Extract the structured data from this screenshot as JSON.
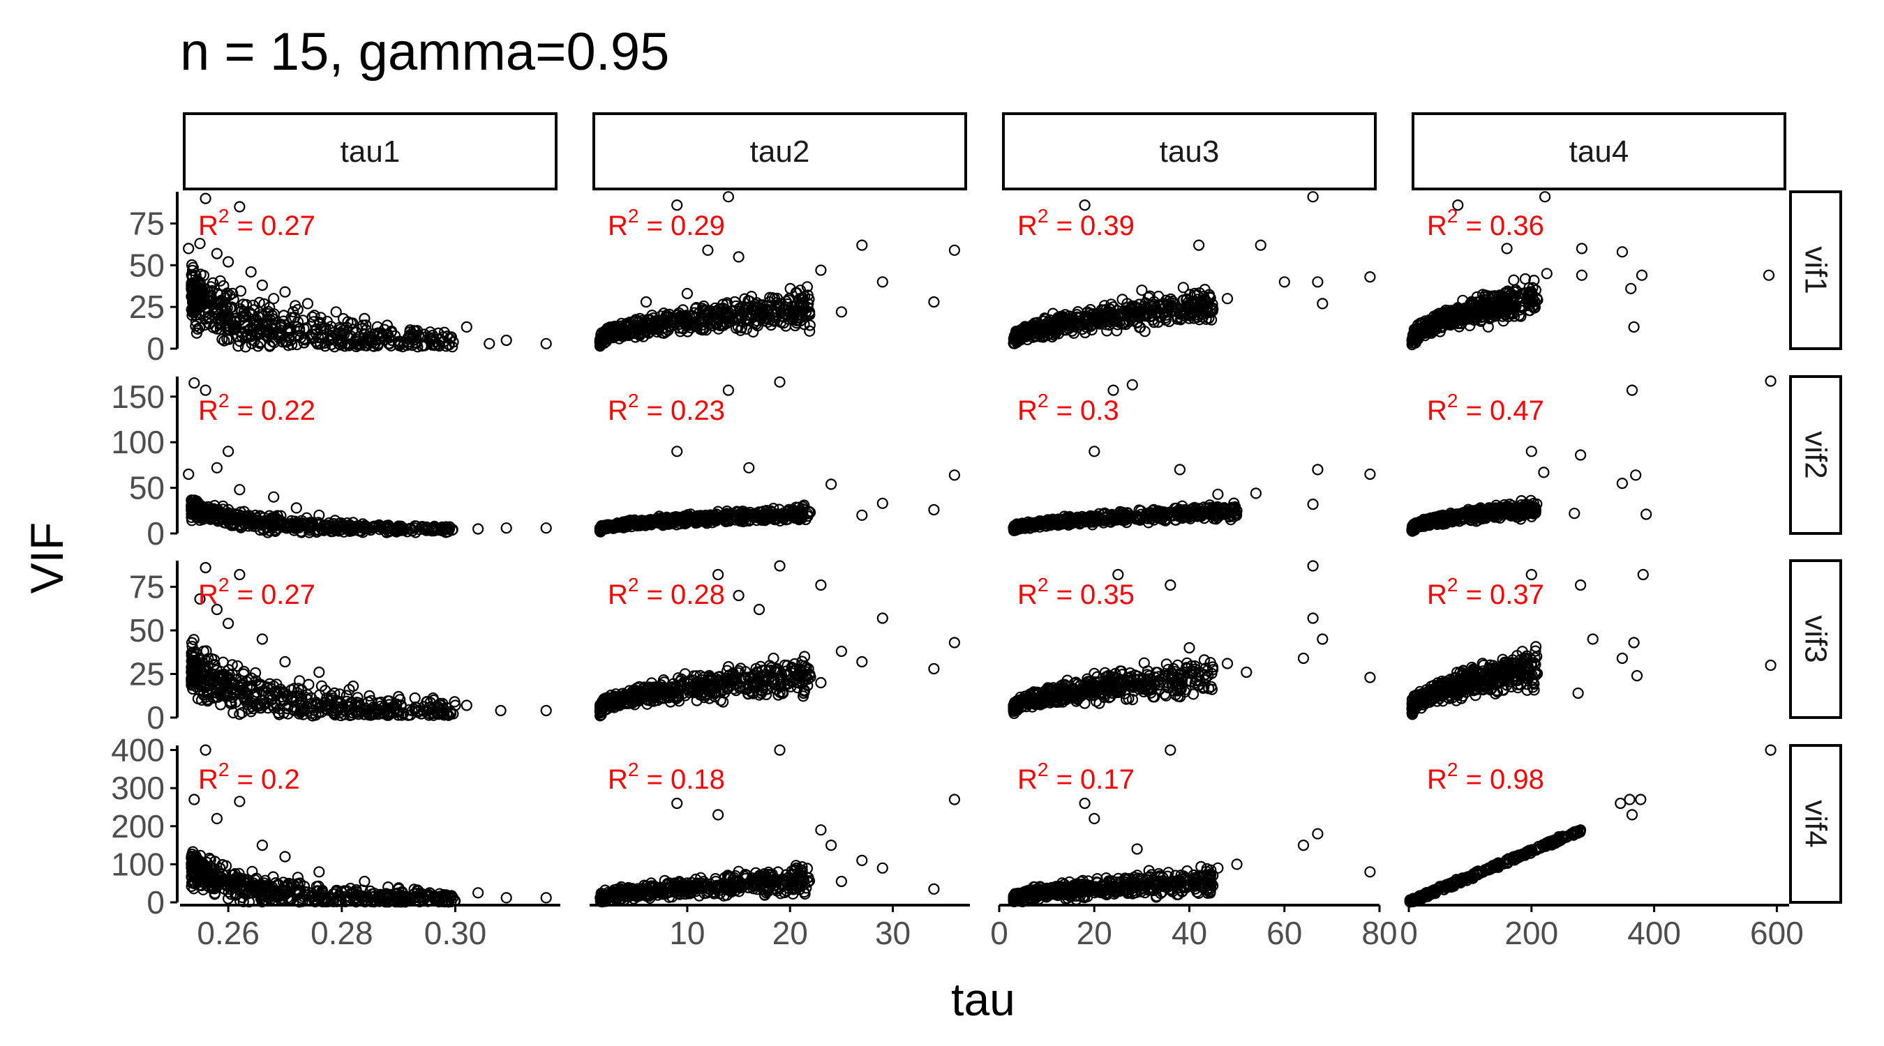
{
  "title": "n = 15, gamma=0.95",
  "colors": {
    "annotation": "#ff0000",
    "points": "#000000",
    "ticks": "#4d4d4d"
  },
  "chart_data": {
    "type": "scatter",
    "title": "n = 15, gamma=0.95",
    "xlabel": "tau",
    "ylabel": "VIF",
    "grid": false,
    "col_facets": [
      {
        "label": "tau1",
        "xlim": [
          0.2515,
          0.3185
        ],
        "xticks": [
          0.26,
          0.28,
          0.3
        ],
        "xtick_labels": [
          "0.26",
          "0.28",
          "0.30"
        ]
      },
      {
        "label": "tau2",
        "xlim": [
          0.5,
          37.5
        ],
        "xticks": [
          10,
          20,
          30
        ],
        "xtick_labels": [
          "10",
          "20",
          "30"
        ]
      },
      {
        "label": "tau3",
        "xlim": [
          0,
          80
        ],
        "xticks": [
          0,
          20,
          40,
          60,
          80
        ],
        "xtick_labels": [
          "0",
          "20",
          "40",
          "60",
          "80"
        ]
      },
      {
        "label": "tau4",
        "xlim": [
          0,
          620
        ],
        "xticks": [
          0,
          200,
          400,
          600
        ],
        "xtick_labels": [
          "0",
          "200",
          "400",
          "600"
        ]
      }
    ],
    "row_facets": [
      {
        "label": "vif1",
        "ylim": [
          0,
          94
        ],
        "yticks": [
          0,
          25,
          50,
          75
        ],
        "ytick_labels": [
          "0",
          "25",
          "50",
          "75"
        ]
      },
      {
        "label": "vif2",
        "ylim": [
          0,
          172
        ],
        "yticks": [
          0,
          50,
          100,
          150
        ],
        "ytick_labels": [
          "0",
          "50",
          "100",
          "150"
        ]
      },
      {
        "label": "vif3",
        "ylim": [
          0,
          90
        ],
        "yticks": [
          0,
          25,
          50,
          75
        ],
        "ytick_labels": [
          "0",
          "25",
          "50",
          "75"
        ]
      },
      {
        "label": "vif4",
        "ylim": [
          0,
          412
        ],
        "yticks": [
          0,
          100,
          200,
          300,
          400
        ],
        "ytick_labels": [
          "0",
          "100",
          "200",
          "300",
          "400"
        ]
      }
    ],
    "r_squared": [
      [
        "0.27",
        "0.29",
        "0.39",
        "0.36"
      ],
      [
        "0.22",
        "0.23",
        "0.3",
        "0.47"
      ],
      [
        "0.27",
        "0.28",
        "0.35",
        "0.37"
      ],
      [
        "0.2",
        "0.18",
        "0.17",
        "0.98"
      ]
    ],
    "r_squared_prefix": "R",
    "r_squared_exponent": "2",
    "r_squared_equals": " = ",
    "panels": [
      {
        "row": 0,
        "col": 0,
        "points": [
          [
            0.256,
            90
          ],
          [
            0.262,
            85
          ],
          [
            0.255,
            63
          ],
          [
            0.253,
            60
          ],
          [
            0.258,
            57
          ],
          [
            0.26,
            52
          ],
          [
            0.264,
            46
          ],
          [
            0.266,
            38
          ],
          [
            0.27,
            34
          ],
          [
            0.268,
            30
          ],
          [
            0.274,
            27
          ],
          [
            0.279,
            22
          ],
          [
            0.284,
            18
          ],
          [
            0.288,
            14
          ],
          [
            0.292,
            10
          ],
          [
            0.296,
            8
          ],
          [
            0.299,
            6
          ],
          [
            0.302,
            13
          ],
          [
            0.306,
            3
          ],
          [
            0.309,
            5
          ],
          [
            0.316,
            3
          ]
        ]
      },
      {
        "row": 0,
        "col": 1,
        "points": [
          [
            9,
            86
          ],
          [
            14,
            91
          ],
          [
            12,
            59
          ],
          [
            15,
            55
          ],
          [
            23,
            47
          ],
          [
            27,
            62
          ],
          [
            29,
            40
          ],
          [
            34,
            28
          ],
          [
            36,
            59
          ],
          [
            21,
            35
          ],
          [
            18,
            28
          ],
          [
            6,
            28
          ],
          [
            10,
            33
          ],
          [
            25,
            22
          ]
        ]
      },
      {
        "row": 0,
        "col": 2,
        "points": [
          [
            18,
            86
          ],
          [
            66,
            91
          ],
          [
            42,
            62
          ],
          [
            55,
            62
          ],
          [
            60,
            40
          ],
          [
            67,
            40
          ],
          [
            68,
            27
          ],
          [
            78,
            43
          ],
          [
            48,
            30
          ],
          [
            30,
            35
          ],
          [
            24,
            25
          ]
        ]
      },
      {
        "row": 0,
        "col": 3,
        "points": [
          [
            80,
            86
          ],
          [
            222,
            91
          ],
          [
            160,
            60
          ],
          [
            225,
            45
          ],
          [
            282,
            44
          ],
          [
            282,
            60
          ],
          [
            348,
            58
          ],
          [
            362,
            36
          ],
          [
            367,
            13
          ],
          [
            380,
            44
          ],
          [
            587,
            44
          ],
          [
            200,
            28
          ]
        ]
      },
      {
        "row": 1,
        "col": 0,
        "points": [
          [
            0.254,
            165
          ],
          [
            0.256,
            157
          ],
          [
            0.26,
            90
          ],
          [
            0.253,
            65
          ],
          [
            0.258,
            72
          ],
          [
            0.262,
            48
          ],
          [
            0.268,
            40
          ],
          [
            0.272,
            28
          ],
          [
            0.276,
            20
          ],
          [
            0.282,
            12
          ],
          [
            0.29,
            8
          ],
          [
            0.296,
            6
          ],
          [
            0.304,
            5
          ],
          [
            0.309,
            6
          ],
          [
            0.316,
            6
          ]
        ]
      },
      {
        "row": 1,
        "col": 1,
        "points": [
          [
            19,
            166
          ],
          [
            14,
            157
          ],
          [
            9,
            90
          ],
          [
            16,
            72
          ],
          [
            24,
            54
          ],
          [
            29,
            33
          ],
          [
            34,
            26
          ],
          [
            36,
            64
          ],
          [
            27,
            20
          ],
          [
            21,
            20
          ]
        ]
      },
      {
        "row": 1,
        "col": 2,
        "points": [
          [
            28,
            163
          ],
          [
            24,
            157
          ],
          [
            20,
            90
          ],
          [
            38,
            70
          ],
          [
            46,
            43
          ],
          [
            54,
            44
          ],
          [
            67,
            70
          ],
          [
            78,
            65
          ],
          [
            66,
            32
          ],
          [
            50,
            25
          ]
        ]
      },
      {
        "row": 1,
        "col": 3,
        "points": [
          [
            200,
            90
          ],
          [
            280,
            86
          ],
          [
            370,
            64
          ],
          [
            364,
            157
          ],
          [
            387,
            21
          ],
          [
            590,
            167
          ],
          [
            348,
            55
          ],
          [
            270,
            22
          ],
          [
            220,
            67
          ]
        ]
      },
      {
        "row": 2,
        "col": 0,
        "points": [
          [
            0.256,
            86
          ],
          [
            0.262,
            82
          ],
          [
            0.255,
            68
          ],
          [
            0.258,
            62
          ],
          [
            0.26,
            54
          ],
          [
            0.266,
            45
          ],
          [
            0.27,
            32
          ],
          [
            0.276,
            26
          ],
          [
            0.282,
            18
          ],
          [
            0.29,
            12
          ],
          [
            0.295,
            9
          ],
          [
            0.302,
            7
          ],
          [
            0.308,
            4
          ],
          [
            0.316,
            4
          ]
        ]
      },
      {
        "row": 2,
        "col": 1,
        "points": [
          [
            13,
            82
          ],
          [
            19,
            87
          ],
          [
            23,
            76
          ],
          [
            15,
            70
          ],
          [
            17,
            62
          ],
          [
            29,
            57
          ],
          [
            25,
            38
          ],
          [
            27,
            32
          ],
          [
            34,
            28
          ],
          [
            36,
            43
          ],
          [
            23,
            20
          ]
        ]
      },
      {
        "row": 2,
        "col": 2,
        "points": [
          [
            25,
            82
          ],
          [
            36,
            76
          ],
          [
            66,
            87
          ],
          [
            68,
            45
          ],
          [
            66,
            57
          ],
          [
            78,
            23
          ],
          [
            48,
            31
          ],
          [
            64,
            34
          ],
          [
            52,
            26
          ],
          [
            40,
            40
          ]
        ]
      },
      {
        "row": 2,
        "col": 3,
        "points": [
          [
            200,
            82
          ],
          [
            280,
            76
          ],
          [
            382,
            82
          ],
          [
            348,
            34
          ],
          [
            367,
            43
          ],
          [
            372,
            24
          ],
          [
            590,
            30
          ],
          [
            276,
            14
          ],
          [
            300,
            45
          ]
        ]
      },
      {
        "row": 3,
        "col": 0,
        "points": [
          [
            0.256,
            400
          ],
          [
            0.254,
            270
          ],
          [
            0.262,
            265
          ],
          [
            0.258,
            220
          ],
          [
            0.266,
            150
          ],
          [
            0.27,
            120
          ],
          [
            0.276,
            80
          ],
          [
            0.284,
            55
          ],
          [
            0.29,
            35
          ],
          [
            0.298,
            20
          ],
          [
            0.304,
            25
          ],
          [
            0.309,
            12
          ],
          [
            0.316,
            12
          ]
        ]
      },
      {
        "row": 3,
        "col": 1,
        "points": [
          [
            19,
            400
          ],
          [
            36,
            270
          ],
          [
            9,
            260
          ],
          [
            13,
            230
          ],
          [
            23,
            190
          ],
          [
            24,
            150
          ],
          [
            27,
            110
          ],
          [
            29,
            90
          ],
          [
            34,
            35
          ],
          [
            25,
            55
          ]
        ]
      },
      {
        "row": 3,
        "col": 2,
        "points": [
          [
            36,
            400
          ],
          [
            18,
            260
          ],
          [
            20,
            220
          ],
          [
            29,
            140
          ],
          [
            46,
            90
          ],
          [
            67,
            180
          ],
          [
            64,
            150
          ],
          [
            78,
            80
          ],
          [
            50,
            100
          ]
        ]
      },
      {
        "row": 3,
        "col": 3,
        "points": [
          [
            590,
            400
          ],
          [
            360,
            270
          ],
          [
            345,
            260
          ],
          [
            378,
            270
          ],
          [
            364,
            230
          ],
          [
            280,
            190
          ],
          [
            270,
            185
          ],
          [
            60,
            40
          ]
        ]
      }
    ],
    "trend_clusters": [
      {
        "row": 0,
        "col": 0,
        "shape": "decay",
        "x0": 0.2535,
        "x1": 0.3,
        "y_at_x0": 32,
        "y_at_x1": 4,
        "spread": 16,
        "n": 500
      },
      {
        "row": 0,
        "col": 1,
        "shape": "rise",
        "x0": 1.5,
        "x1": 22,
        "y_at_x0": 4,
        "y_at_x1": 24,
        "spread": 11,
        "n": 500
      },
      {
        "row": 0,
        "col": 2,
        "shape": "rise",
        "x0": 3,
        "x1": 45,
        "y_at_x0": 4,
        "y_at_x1": 26,
        "spread": 11,
        "n": 500
      },
      {
        "row": 0,
        "col": 3,
        "shape": "rise",
        "x0": 5,
        "x1": 210,
        "y_at_x0": 4,
        "y_at_x1": 30,
        "spread": 11,
        "n": 500
      },
      {
        "row": 1,
        "col": 0,
        "shape": "decay",
        "x0": 0.2535,
        "x1": 0.3,
        "y_at_x0": 28,
        "y_at_x1": 4,
        "spread": 10,
        "n": 500
      },
      {
        "row": 1,
        "col": 1,
        "shape": "rise",
        "x0": 1.5,
        "x1": 22,
        "y_at_x0": 4,
        "y_at_x1": 22,
        "spread": 8,
        "n": 500
      },
      {
        "row": 1,
        "col": 2,
        "shape": "rise",
        "x0": 3,
        "x1": 50,
        "y_at_x0": 4,
        "y_at_x1": 24,
        "spread": 8,
        "n": 500
      },
      {
        "row": 1,
        "col": 3,
        "shape": "rise",
        "x0": 5,
        "x1": 210,
        "y_at_x0": 4,
        "y_at_x1": 28,
        "spread": 9,
        "n": 500
      },
      {
        "row": 2,
        "col": 0,
        "shape": "decay",
        "x0": 0.2535,
        "x1": 0.3,
        "y_at_x0": 28,
        "y_at_x1": 4,
        "spread": 14,
        "n": 500
      },
      {
        "row": 2,
        "col": 1,
        "shape": "rise",
        "x0": 1.5,
        "x1": 22,
        "y_at_x0": 4,
        "y_at_x1": 24,
        "spread": 11,
        "n": 500
      },
      {
        "row": 2,
        "col": 2,
        "shape": "rise",
        "x0": 3,
        "x1": 45,
        "y_at_x0": 4,
        "y_at_x1": 24,
        "spread": 11,
        "n": 500
      },
      {
        "row": 2,
        "col": 3,
        "shape": "rise",
        "x0": 5,
        "x1": 210,
        "y_at_x0": 4,
        "y_at_x1": 28,
        "spread": 11,
        "n": 500
      },
      {
        "row": 3,
        "col": 0,
        "shape": "decay",
        "x0": 0.2535,
        "x1": 0.3,
        "y_at_x0": 90,
        "y_at_x1": 8,
        "spread": 45,
        "n": 500
      },
      {
        "row": 3,
        "col": 1,
        "shape": "rise",
        "x0": 1.5,
        "x1": 22,
        "y_at_x0": 6,
        "y_at_x1": 60,
        "spread": 35,
        "n": 500
      },
      {
        "row": 3,
        "col": 2,
        "shape": "rise",
        "x0": 3,
        "x1": 45,
        "y_at_x0": 6,
        "y_at_x1": 55,
        "spread": 35,
        "n": 500
      },
      {
        "row": 3,
        "col": 3,
        "shape": "linear",
        "x0": 2,
        "x1": 282,
        "y_at_x0": 2,
        "y_at_x1": 190,
        "spread": 6,
        "n": 300
      }
    ]
  }
}
